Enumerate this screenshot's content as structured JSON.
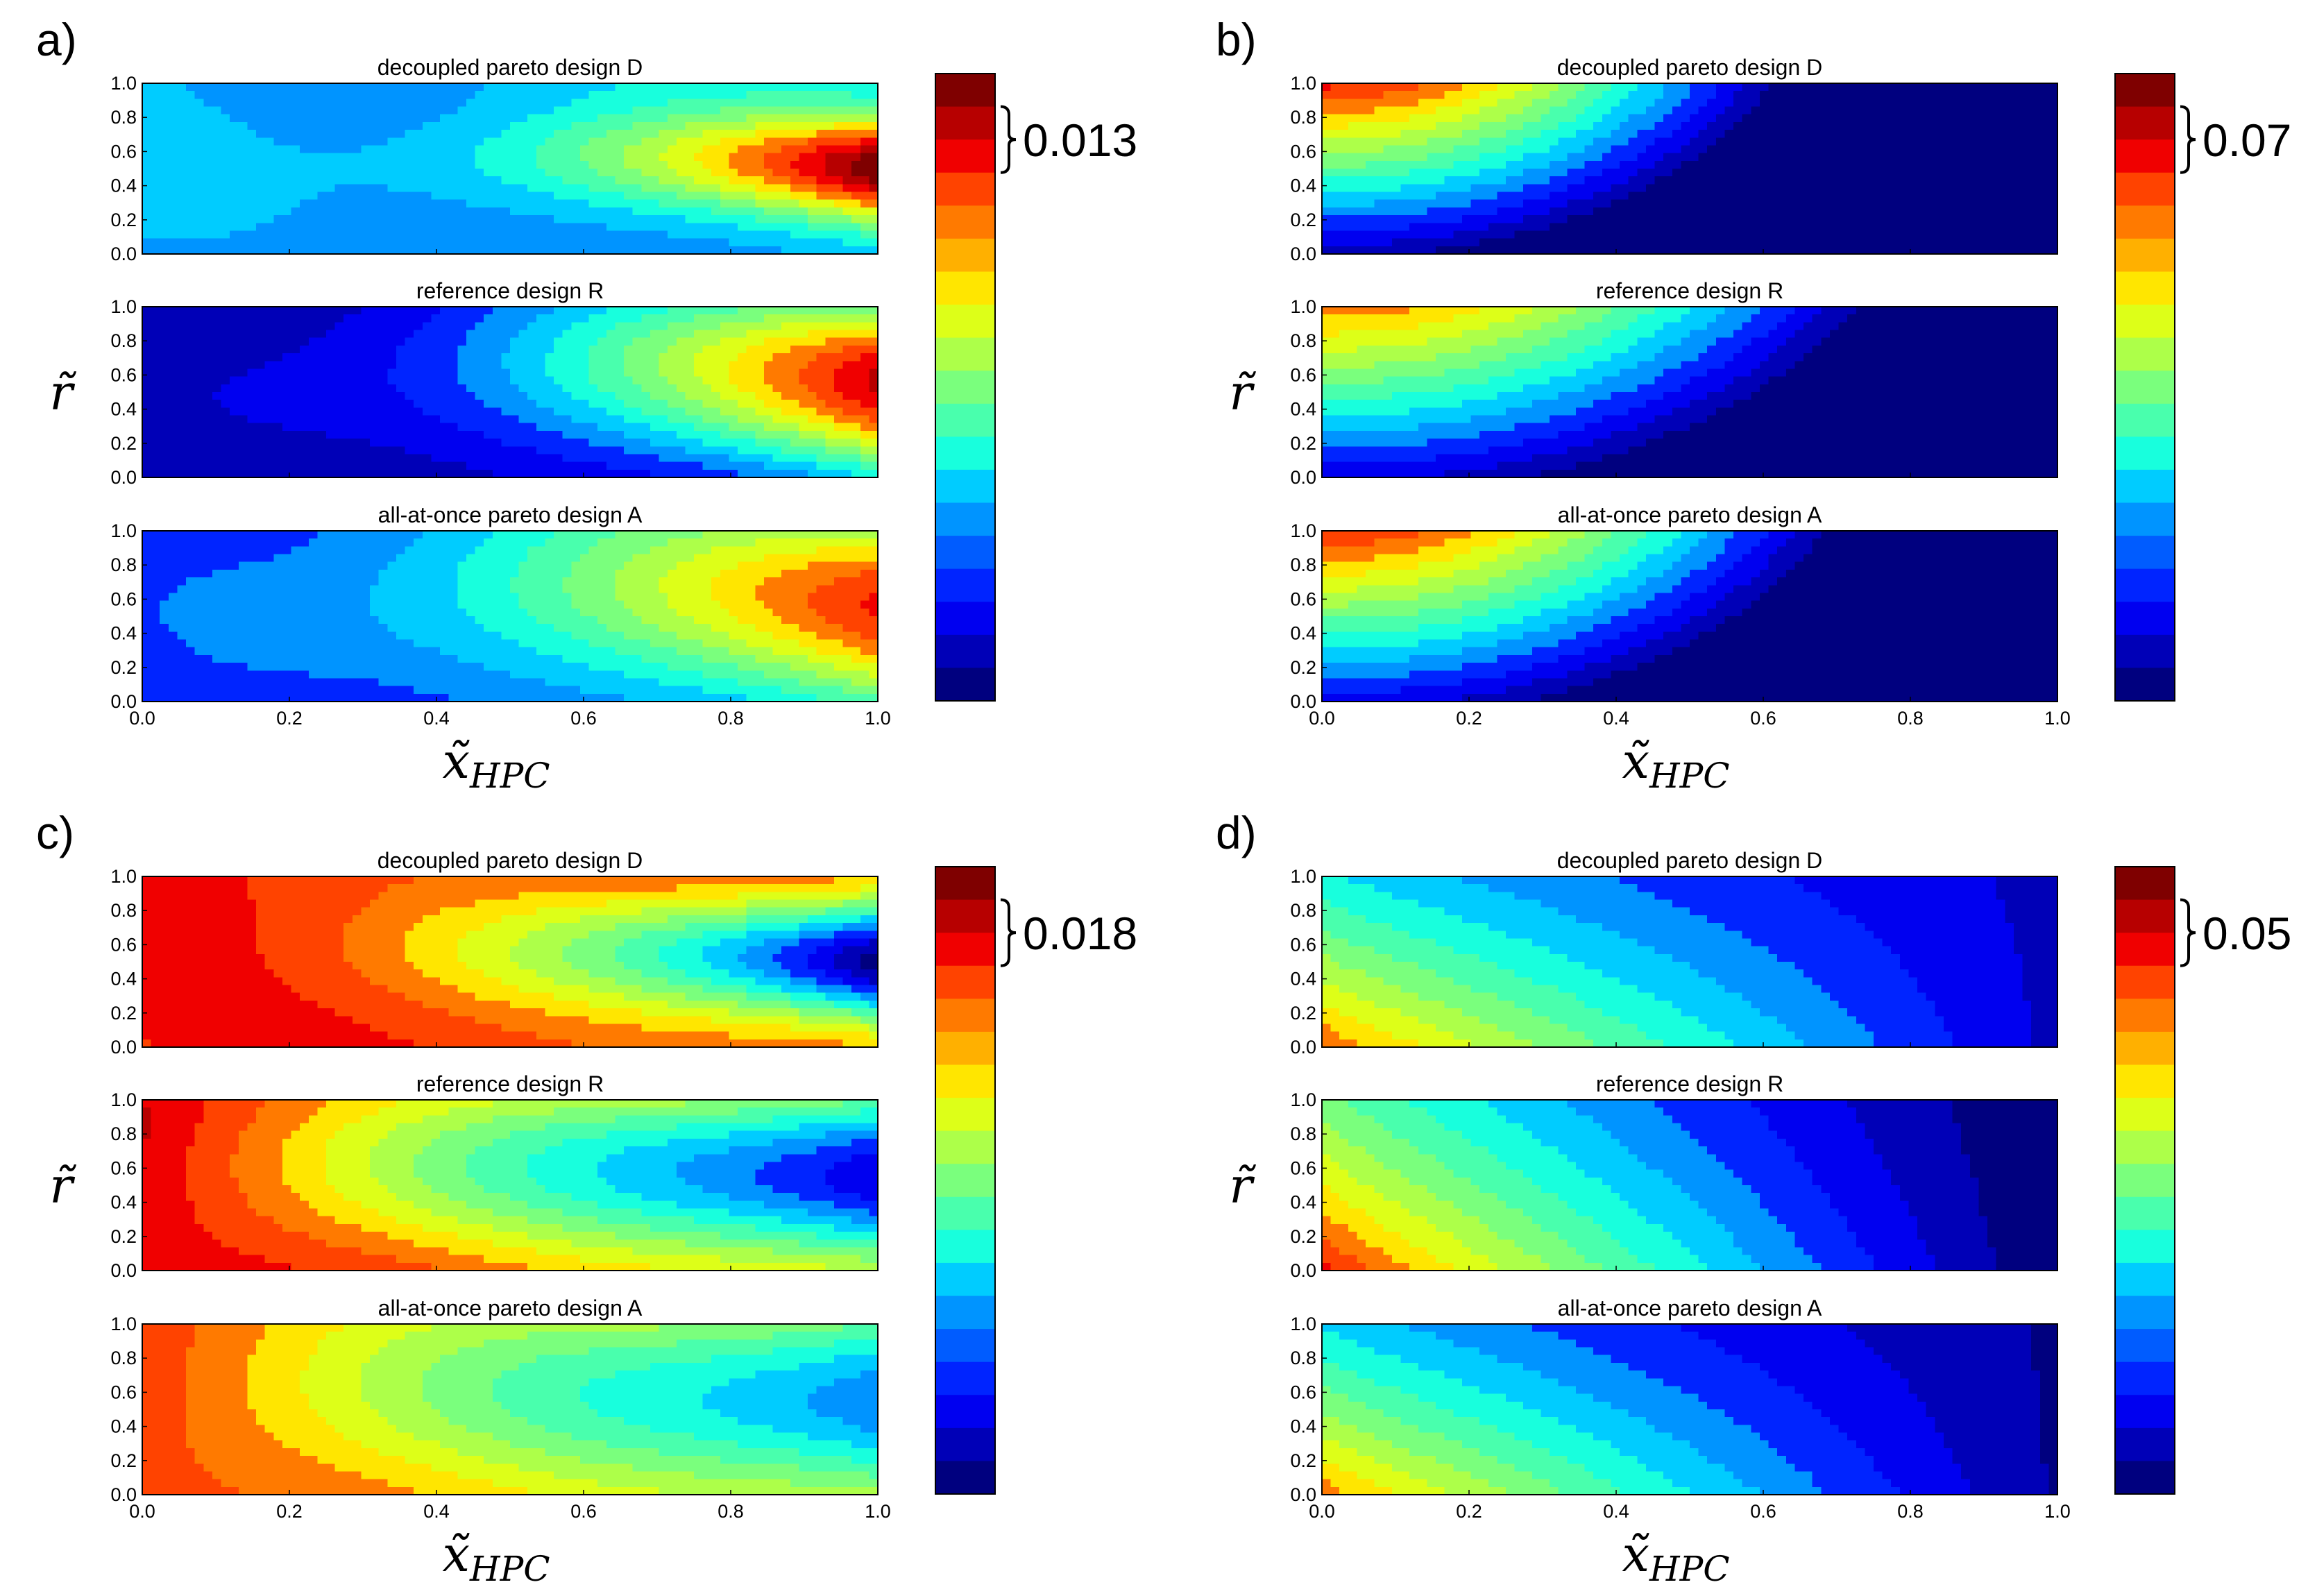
{
  "chart_data": [
    {
      "type": "heatmap",
      "panel_label": "a)",
      "colorbar_label": "0.013",
      "xlabel": "x̃",
      "xlabel_sub": "HPC",
      "ylabel": "r̃",
      "x_ticks": [
        "0.0",
        "0.2",
        "0.4",
        "0.6",
        "0.8",
        "1.0"
      ],
      "y_ticks": [
        "0.0",
        "0.2",
        "0.4",
        "0.6",
        "0.8",
        "1.0"
      ],
      "xlim": [
        0,
        1
      ],
      "ylim": [
        0,
        1
      ],
      "levels": 17,
      "subplots": [
        {
          "title": "decoupled pareto design D",
          "pattern": "right_peak",
          "params": {
            "base": 0.3,
            "k": 0.66,
            "p": 2.2,
            "yc": 0.5,
            "w": 0.3,
            "sag": 0.06
          }
        },
        {
          "title": "reference design R",
          "pattern": "right_peak",
          "params": {
            "base": 0.08,
            "k": 0.78,
            "p": 1.5,
            "yc": 0.55,
            "w": 0.55,
            "sag": 0.08
          }
        },
        {
          "title": "all-at-once pareto design A",
          "pattern": "right_peak",
          "params": {
            "base": 0.2,
            "k": 0.6,
            "p": 1.2,
            "yc": 0.55,
            "w": 0.6,
            "sag": 0.08
          }
        }
      ]
    },
    {
      "type": "heatmap",
      "panel_label": "b)",
      "colorbar_label": "0.07",
      "xlabel": "x̃",
      "xlabel_sub": "HPC",
      "ylabel": "r̃",
      "x_ticks": [
        "0.0",
        "0.2",
        "0.4",
        "0.6",
        "0.8",
        "1.0"
      ],
      "y_ticks": [
        "0.0",
        "0.2",
        "0.4",
        "0.6",
        "0.8",
        "1.0"
      ],
      "xlim": [
        0,
        1
      ],
      "ylim": [
        0,
        1
      ],
      "levels": 17,
      "subplots": [
        {
          "title": "decoupled pareto design D",
          "pattern": "top_left",
          "params": {
            "rate": 1.8,
            "ym": 1.6
          }
        },
        {
          "title": "reference design R",
          "pattern": "top_left",
          "params": {
            "rate": 1.45,
            "ym": 1.9
          }
        },
        {
          "title": "all-at-once pareto design A",
          "pattern": "top_left",
          "params": {
            "rate": 1.6,
            "ym": 1.7
          }
        }
      ]
    },
    {
      "type": "heatmap",
      "panel_label": "c)",
      "colorbar_label": "0.018",
      "xlabel": "x̃",
      "xlabel_sub": "HPC",
      "ylabel": "r̃",
      "x_ticks": [
        "0.0",
        "0.2",
        "0.4",
        "0.6",
        "0.8",
        "1.0"
      ],
      "y_ticks": [
        "0.0",
        "0.2",
        "0.4",
        "0.6",
        "0.8",
        "1.0"
      ],
      "xlim": [
        0,
        1
      ],
      "ylim": [
        0,
        1
      ],
      "levels": 17,
      "subplots": [
        {
          "title": "decoupled pareto design D",
          "pattern": "right_dip",
          "params": {
            "base": 0.82,
            "k": 0.78,
            "p": 2.0,
            "yc": 0.5,
            "w": 0.35,
            "sag": 0.06
          }
        },
        {
          "title": "reference design R",
          "pattern": "right_dip",
          "params": {
            "base": 0.86,
            "k": 0.72,
            "p": 0.85,
            "yc": 0.55,
            "w": 0.55,
            "sag": 0.06
          }
        },
        {
          "title": "all-at-once pareto design A",
          "pattern": "right_dip",
          "params": {
            "base": 0.78,
            "k": 0.52,
            "p": 0.85,
            "yc": 0.55,
            "w": 0.6,
            "sag": 0.06
          }
        }
      ]
    },
    {
      "type": "heatmap",
      "panel_label": "d)",
      "colorbar_label": "0.05",
      "xlabel": "x̃",
      "xlabel_sub": "HPC",
      "ylabel": "r̃",
      "x_ticks": [
        "0.0",
        "0.2",
        "0.4",
        "0.6",
        "0.8",
        "1.0"
      ],
      "y_ticks": [
        "0.0",
        "0.2",
        "0.4",
        "0.6",
        "0.8",
        "1.0"
      ],
      "xlim": [
        0,
        1
      ],
      "ylim": [
        0,
        1
      ],
      "levels": 17,
      "subplots": [
        {
          "title": "decoupled pareto design D",
          "pattern": "bottom_left",
          "params": {
            "base": 0.62,
            "kx": 0.52,
            "ky": 0.25
          }
        },
        {
          "title": "reference design R",
          "pattern": "bottom_left",
          "params": {
            "base": 0.7,
            "kx": 0.7,
            "ky": 0.2
          }
        },
        {
          "title": "all-at-once pareto design A",
          "pattern": "bottom_left",
          "params": {
            "base": 0.6,
            "kx": 0.55,
            "ky": 0.25
          }
        }
      ]
    }
  ],
  "colormap": [
    "#00007f",
    "#0000b7",
    "#0000f0",
    "#0024ff",
    "#005cff",
    "#0094ff",
    "#00ccff",
    "#18ffdd",
    "#49ffad",
    "#7aff7d",
    "#adff49",
    "#ddff18",
    "#ffe600",
    "#ffb000",
    "#ff7a00",
    "#ff4300",
    "#f00000",
    "#b70000",
    "#7f0000"
  ]
}
